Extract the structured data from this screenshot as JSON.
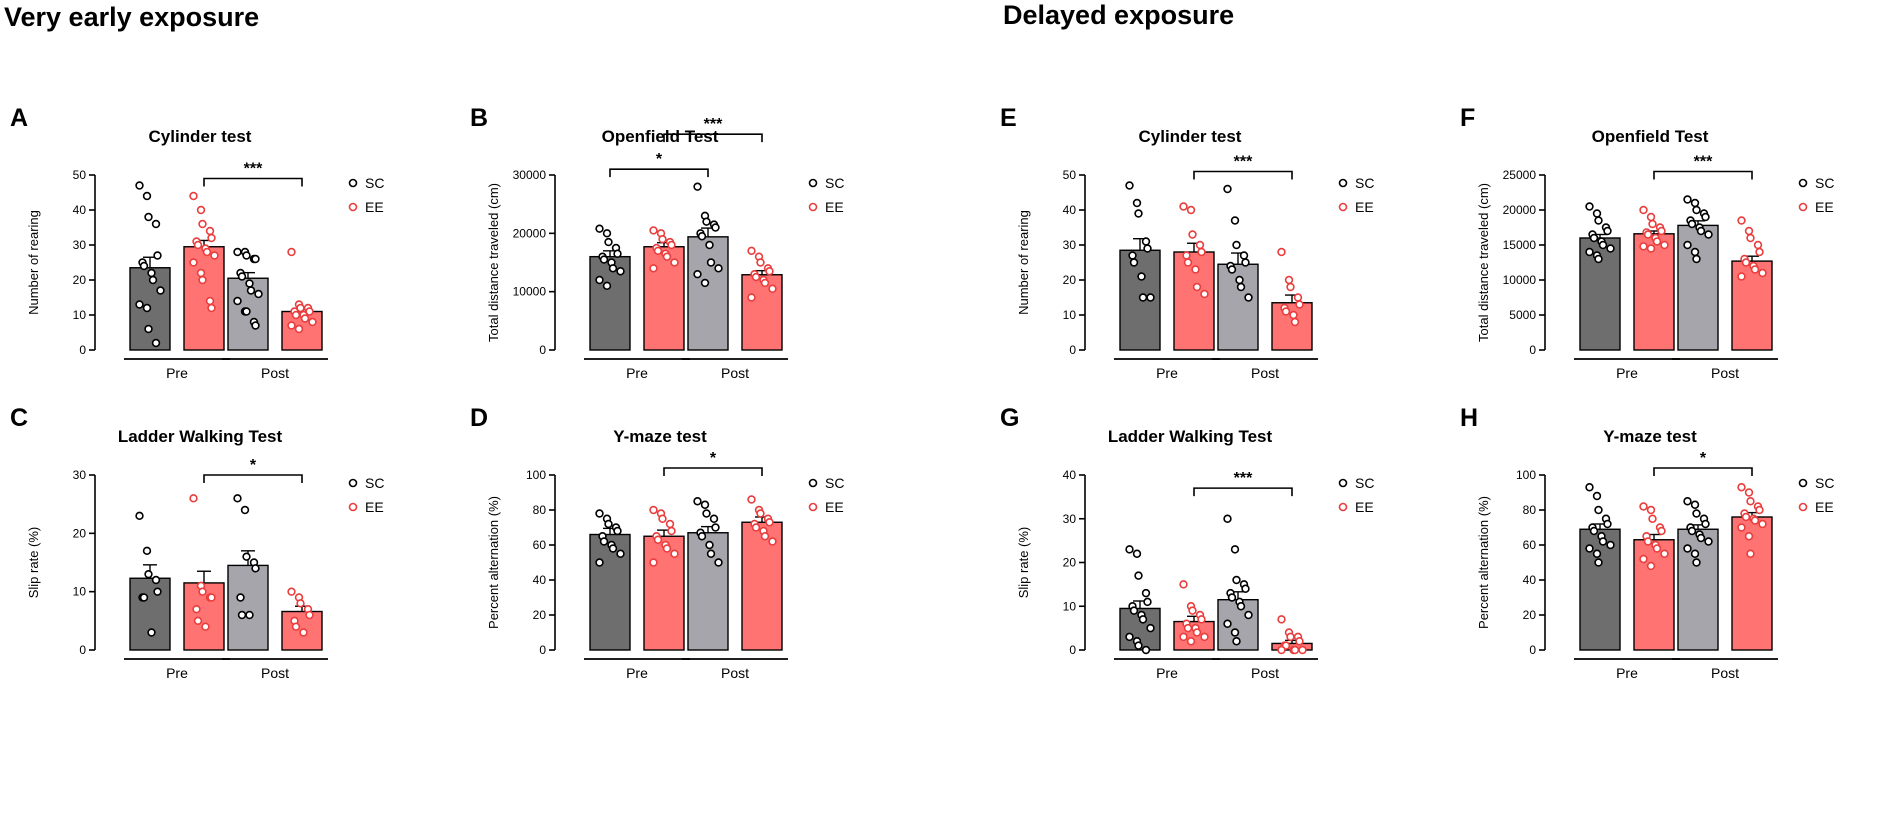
{
  "section_titles": {
    "very_early": "Very early exposure",
    "delayed": "Delayed exposure"
  },
  "colors": {
    "sc_pre": "#6e6e6e",
    "ee": "#ff7373",
    "sc_post": "#a5a5ab",
    "ee_point": "#ea3d3d"
  },
  "chart_data": [
    {
      "letter": "A",
      "type": "bar",
      "title": "Cylinder test",
      "ylabel": "Number of rearing",
      "ylim": [
        0,
        50
      ],
      "yticks": [
        0,
        10,
        20,
        30,
        40,
        50
      ],
      "categories": [
        "Pre",
        "Post"
      ],
      "legend": [
        "SC",
        "EE"
      ],
      "legend_position": "right",
      "bars": [
        {
          "group": "Pre",
          "series": "SC",
          "value": 23.5,
          "err": 3
        },
        {
          "group": "Pre",
          "series": "EE",
          "value": 29.5,
          "err": 1.8
        },
        {
          "group": "Post",
          "series": "SC",
          "value": 20.5,
          "err": 1.6
        },
        {
          "group": "Post",
          "series": "EE",
          "value": 11,
          "err": 0.8
        }
      ],
      "points": [
        [
          47,
          44,
          38,
          36,
          27,
          25,
          24,
          22,
          20,
          17,
          13,
          12,
          6,
          2
        ],
        [
          44,
          40,
          36,
          34,
          32,
          31,
          30,
          29,
          28,
          27,
          25,
          22,
          20,
          14,
          12
        ],
        [
          28,
          28,
          27,
          26,
          26,
          22,
          21,
          19,
          17,
          16,
          14,
          11,
          11,
          8,
          7
        ],
        [
          28,
          13,
          12,
          12,
          11,
          11,
          10,
          10,
          9,
          8,
          7,
          6
        ]
      ],
      "sig": [
        {
          "from": 1,
          "to": 3,
          "label": "***",
          "y": 49
        }
      ]
    },
    {
      "letter": "B",
      "type": "bar",
      "title": "Openfield Test",
      "ylabel": "Total distance traveled (cm)",
      "ylim": [
        0,
        30000
      ],
      "yticks": [
        0,
        10000,
        20000,
        30000
      ],
      "categories": [
        "Pre",
        "Post"
      ],
      "legend": [
        "SC",
        "EE"
      ],
      "legend_position": "right",
      "bars": [
        {
          "group": "Pre",
          "series": "SC",
          "value": 16000,
          "err": 1000
        },
        {
          "group": "Pre",
          "series": "EE",
          "value": 17700,
          "err": 700
        },
        {
          "group": "Post",
          "series": "SC",
          "value": 19400,
          "err": 1500
        },
        {
          "group": "Post",
          "series": "EE",
          "value": 12900,
          "err": 700
        }
      ],
      "points": [
        [
          20800,
          20000,
          18500,
          17500,
          16500,
          16000,
          15500,
          15000,
          14000,
          13500,
          12000,
          11000
        ],
        [
          20500,
          20000,
          19000,
          18500,
          18000,
          17500,
          17000,
          16500,
          16000,
          15000,
          14000
        ],
        [
          28000,
          23000,
          22000,
          21500,
          21000,
          20000,
          19500,
          18000,
          15000,
          14000,
          13000,
          11500
        ],
        [
          17000,
          16000,
          15000,
          14000,
          13500,
          13000,
          12500,
          12000,
          11500,
          10500,
          9000
        ]
      ],
      "sig": [
        {
          "from": 0,
          "to": 2,
          "label": "*",
          "y": 31000
        },
        {
          "from": 1,
          "to": 3,
          "label": "***",
          "y": 37000
        }
      ]
    },
    {
      "letter": "C",
      "type": "bar",
      "title": "Ladder Walking Test",
      "ylabel": "Slip rate (%)",
      "ylim": [
        0,
        30
      ],
      "yticks": [
        0,
        10,
        20,
        30
      ],
      "categories": [
        "Pre",
        "Post"
      ],
      "legend": [
        "SC",
        "EE"
      ],
      "legend_position": "right",
      "bars": [
        {
          "group": "Pre",
          "series": "SC",
          "value": 12.3,
          "err": 2.3
        },
        {
          "group": "Pre",
          "series": "EE",
          "value": 11.5,
          "err": 2
        },
        {
          "group": "Post",
          "series": "SC",
          "value": 14.5,
          "err": 2.5
        },
        {
          "group": "Post",
          "series": "EE",
          "value": 6.6,
          "err": 0.9
        }
      ],
      "points": [
        [
          23,
          17,
          13,
          12,
          10,
          9,
          9,
          3
        ],
        [
          26,
          11,
          10,
          9,
          9,
          7,
          5,
          4
        ],
        [
          26,
          24,
          16,
          15,
          14,
          9,
          6,
          6
        ],
        [
          10,
          9,
          8,
          7,
          6,
          5,
          4,
          3
        ]
      ],
      "sig": [
        {
          "from": 1,
          "to": 3,
          "label": "*",
          "y": 30
        }
      ]
    },
    {
      "letter": "D",
      "type": "bar",
      "title": "Y-maze test",
      "ylabel": "Percent alternation (%)",
      "ylim": [
        0,
        100
      ],
      "yticks": [
        0,
        20,
        40,
        60,
        80,
        100
      ],
      "categories": [
        "Pre",
        "Post"
      ],
      "legend": [
        "SC",
        "EE"
      ],
      "legend_position": "right",
      "bars": [
        {
          "group": "Pre",
          "series": "SC",
          "value": 66,
          "err": 3.5
        },
        {
          "group": "Pre",
          "series": "EE",
          "value": 65,
          "err": 3.5
        },
        {
          "group": "Post",
          "series": "SC",
          "value": 67,
          "err": 3.5
        },
        {
          "group": "Post",
          "series": "EE",
          "value": 73,
          "err": 3
        }
      ],
      "points": [
        [
          78,
          75,
          72,
          70,
          68,
          65,
          62,
          60,
          58,
          55,
          50
        ],
        [
          80,
          78,
          75,
          72,
          68,
          65,
          63,
          60,
          58,
          55,
          50
        ],
        [
          85,
          83,
          78,
          75,
          70,
          67,
          65,
          60,
          55,
          50
        ],
        [
          86,
          80,
          78,
          75,
          73,
          72,
          70,
          68,
          65,
          62
        ]
      ],
      "sig": [
        {
          "from": 1,
          "to": 3,
          "label": "*",
          "y": 104
        }
      ]
    },
    {
      "letter": "E",
      "type": "bar",
      "title": "Cylinder test",
      "ylabel": "Number of rearing",
      "ylim": [
        0,
        50
      ],
      "yticks": [
        0,
        10,
        20,
        30,
        40,
        50
      ],
      "categories": [
        "Pre",
        "Post"
      ],
      "legend": [
        "SC",
        "EE"
      ],
      "legend_position": "right",
      "bars": [
        {
          "group": "Pre",
          "series": "SC",
          "value": 28.5,
          "err": 3.3
        },
        {
          "group": "Pre",
          "series": "EE",
          "value": 28,
          "err": 2.5
        },
        {
          "group": "Post",
          "series": "SC",
          "value": 24.5,
          "err": 3.2
        },
        {
          "group": "Post",
          "series": "EE",
          "value": 13.5,
          "err": 2.2
        }
      ],
      "points": [
        [
          47,
          42,
          39,
          31,
          29,
          27,
          25,
          21,
          15,
          15
        ],
        [
          41,
          40,
          33,
          30,
          28,
          27,
          25,
          23,
          18,
          16
        ],
        [
          46,
          37,
          30,
          27,
          25,
          24,
          23,
          20,
          18,
          15
        ],
        [
          28,
          20,
          18,
          15,
          13,
          12,
          11,
          10,
          8
        ]
      ],
      "sig": [
        {
          "from": 1,
          "to": 3,
          "label": "***",
          "y": 51
        }
      ]
    },
    {
      "letter": "F",
      "type": "bar",
      "title": "Openfield Test",
      "ylabel": "Total distance traveled (cm)",
      "ylim": [
        0,
        25000
      ],
      "yticks": [
        0,
        5000,
        10000,
        15000,
        20000,
        25000
      ],
      "categories": [
        "Pre",
        "Post"
      ],
      "legend": [
        "SC",
        "EE"
      ],
      "legend_position": "right",
      "bars": [
        {
          "group": "Pre",
          "series": "SC",
          "value": 16000,
          "err": 500
        },
        {
          "group": "Pre",
          "series": "EE",
          "value": 16600,
          "err": 400
        },
        {
          "group": "Post",
          "series": "SC",
          "value": 17800,
          "err": 650
        },
        {
          "group": "Post",
          "series": "EE",
          "value": 12700,
          "err": 700
        }
      ],
      "points": [
        [
          20500,
          19500,
          18500,
          17500,
          17000,
          16500,
          16000,
          15500,
          15000,
          14500,
          14000,
          13500,
          13000
        ],
        [
          20000,
          19000,
          18000,
          17500,
          17000,
          16800,
          16500,
          16000,
          15500,
          15000,
          14800,
          14500
        ],
        [
          21500,
          21000,
          20000,
          19500,
          19000,
          18500,
          18000,
          17500,
          17000,
          16500,
          15000,
          14000,
          13000
        ],
        [
          18500,
          17000,
          16000,
          15000,
          14000,
          13000,
          12500,
          12000,
          11500,
          11000,
          10500
        ]
      ],
      "sig": [
        {
          "from": 1,
          "to": 3,
          "label": "***",
          "y": 25500
        }
      ]
    },
    {
      "letter": "G",
      "type": "bar",
      "title": "Ladder Walking Test",
      "ylabel": "Slip rate (%)",
      "ylim": [
        0,
        40
      ],
      "yticks": [
        0,
        10,
        20,
        30,
        40
      ],
      "categories": [
        "Pre",
        "Post"
      ],
      "legend": [
        "SC",
        "EE"
      ],
      "legend_position": "right",
      "bars": [
        {
          "group": "Pre",
          "series": "SC",
          "value": 9.5,
          "err": 1.7
        },
        {
          "group": "Pre",
          "series": "EE",
          "value": 6.5,
          "err": 1.2
        },
        {
          "group": "Post",
          "series": "SC",
          "value": 11.5,
          "err": 1.8
        },
        {
          "group": "Post",
          "series": "EE",
          "value": 1.5,
          "err": 0.7
        }
      ],
      "points": [
        [
          23,
          22,
          17,
          13,
          11,
          10,
          9,
          8,
          7,
          5,
          3,
          2,
          1,
          0
        ],
        [
          15,
          10,
          9,
          8,
          7,
          6,
          5,
          5,
          4,
          3,
          3,
          2
        ],
        [
          30,
          23,
          16,
          15,
          14,
          13,
          12,
          11,
          10,
          8,
          6,
          4,
          2
        ],
        [
          7,
          4,
          3,
          3,
          2,
          1,
          1,
          0,
          0,
          0,
          0
        ]
      ],
      "sig": [
        {
          "from": 1,
          "to": 3,
          "label": "***",
          "y": 37
        }
      ]
    },
    {
      "letter": "H",
      "type": "bar",
      "title": "Y-maze test",
      "ylabel": "Percent alternation (%)",
      "ylim": [
        0,
        100
      ],
      "yticks": [
        0,
        20,
        40,
        60,
        80,
        100
      ],
      "categories": [
        "Pre",
        "Post"
      ],
      "legend": [
        "SC",
        "EE"
      ],
      "legend_position": "right",
      "bars": [
        {
          "group": "Pre",
          "series": "SC",
          "value": 69,
          "err": 3
        },
        {
          "group": "Pre",
          "series": "EE",
          "value": 63,
          "err": 3
        },
        {
          "group": "Post",
          "series": "SC",
          "value": 69,
          "err": 2.5
        },
        {
          "group": "Post",
          "series": "EE",
          "value": 76,
          "err": 2.5
        }
      ],
      "points": [
        [
          93,
          88,
          80,
          75,
          72,
          70,
          68,
          65,
          62,
          60,
          58,
          55,
          50
        ],
        [
          82,
          80,
          75,
          70,
          68,
          65,
          62,
          60,
          58,
          55,
          52,
          48
        ],
        [
          85,
          83,
          78,
          75,
          72,
          70,
          68,
          66,
          64,
          62,
          58,
          55,
          50
        ],
        [
          93,
          90,
          85,
          82,
          80,
          78,
          76,
          75,
          74,
          72,
          70,
          65,
          55
        ]
      ],
      "sig": [
        {
          "from": 1,
          "to": 3,
          "label": "*",
          "y": 104
        }
      ]
    }
  ]
}
